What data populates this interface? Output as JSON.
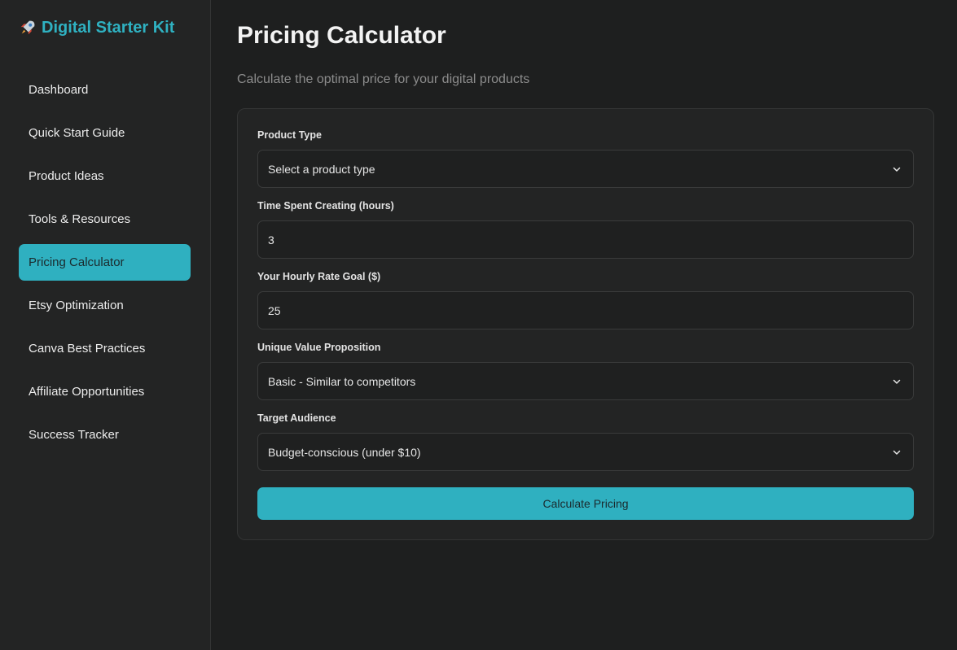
{
  "brand": {
    "icon": "rocket-icon",
    "title": "Digital Starter Kit",
    "color": "#2fb1c1"
  },
  "sidebar": {
    "items": [
      {
        "label": "Dashboard",
        "active": false
      },
      {
        "label": "Quick Start Guide",
        "active": false
      },
      {
        "label": "Product Ideas",
        "active": false
      },
      {
        "label": "Tools & Resources",
        "active": false
      },
      {
        "label": "Pricing Calculator",
        "active": true
      },
      {
        "label": "Etsy Optimization",
        "active": false
      },
      {
        "label": "Canva Best Practices",
        "active": false
      },
      {
        "label": "Affiliate Opportunities",
        "active": false
      },
      {
        "label": "Success Tracker",
        "active": false
      }
    ]
  },
  "page": {
    "title": "Pricing Calculator",
    "subtitle": "Calculate the optimal price for your digital products"
  },
  "form": {
    "product_type": {
      "label": "Product Type",
      "value": "Select a product type"
    },
    "time_spent": {
      "label": "Time Spent Creating (hours)",
      "value": "3"
    },
    "hourly_rate": {
      "label": "Your Hourly Rate Goal ($)",
      "value": "25"
    },
    "value_prop": {
      "label": "Unique Value Proposition",
      "value": "Basic - Similar to competitors"
    },
    "audience": {
      "label": "Target Audience",
      "value": "Budget-conscious (under $10)"
    },
    "submit_label": "Calculate Pricing"
  },
  "colors": {
    "accent": "#2fb0c0",
    "background": "#1e1f1f",
    "panel": "#232424"
  }
}
